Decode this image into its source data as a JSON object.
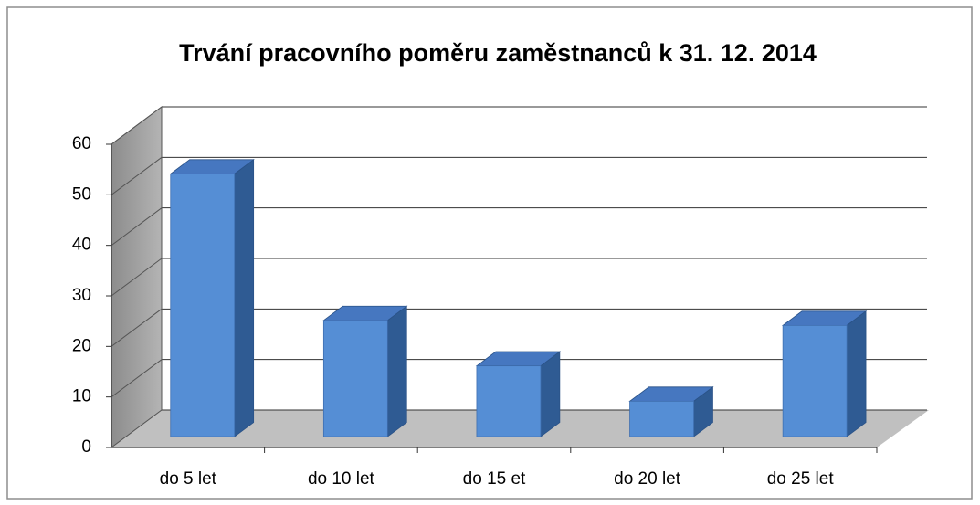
{
  "chart_data": {
    "type": "bar",
    "title": "Trvání pracovního poměru zaměstnanců k 31. 12. 2014",
    "categories": [
      "do 5 let",
      "do 10 let",
      "do 15 et",
      "do 20 let",
      "do 25 let"
    ],
    "values": [
      52,
      23,
      14,
      7,
      22
    ],
    "color": "#558ed5",
    "ylim": [
      0,
      60
    ],
    "yticks": [
      0,
      10,
      20,
      30,
      40,
      50,
      60
    ],
    "grid": true
  }
}
